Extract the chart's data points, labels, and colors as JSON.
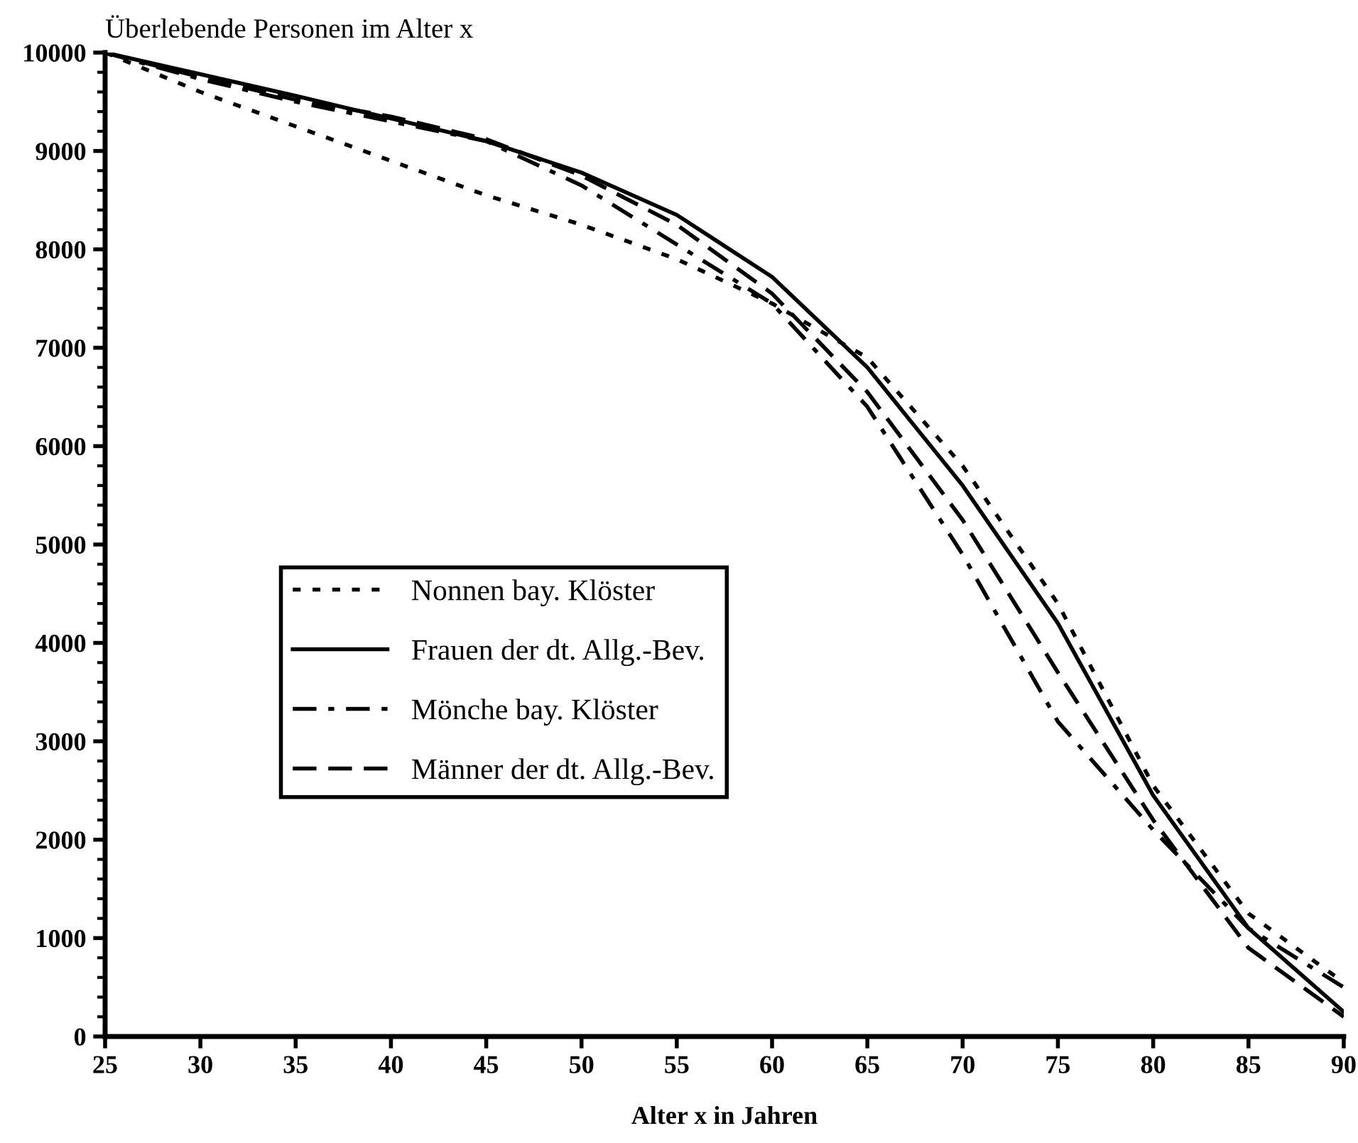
{
  "chart_data": {
    "type": "line",
    "ylabel": "Überlebende Personen im Alter x",
    "xlabel": "Alter x in Jahren",
    "x": [
      25,
      30,
      35,
      40,
      45,
      50,
      55,
      60,
      65,
      70,
      75,
      80,
      85,
      90
    ],
    "xlim": [
      25,
      90
    ],
    "xticks": [
      25,
      30,
      35,
      40,
      45,
      50,
      55,
      60,
      65,
      70,
      75,
      80,
      85,
      90
    ],
    "ylim": [
      0,
      10000
    ],
    "yticks": [
      0,
      1000,
      2000,
      3000,
      4000,
      5000,
      6000,
      7000,
      8000,
      9000,
      10000
    ],
    "grid": false,
    "legend": "left",
    "marker": "none",
    "series": [
      {
        "name": "Nonnen bay. Klöster",
        "color": "#000000",
        "line_style": "dotted",
        "values": [
          10000,
          9600,
          9250,
          8900,
          8550,
          8250,
          7900,
          7450,
          6900,
          5800,
          4400,
          2550,
          1250,
          550
        ]
      },
      {
        "name": "Frauen der dt. Allg.-Bev.",
        "color": "#000000",
        "line_style": "solid",
        "values": [
          10000,
          9780,
          9560,
          9330,
          9100,
          8780,
          8350,
          7720,
          6800,
          5600,
          4200,
          2450,
          1100,
          250
        ]
      },
      {
        "name": "Mönche bay. Klöster",
        "color": "#000000",
        "line_style": "dashdot",
        "values": [
          10000,
          9730,
          9500,
          9300,
          9100,
          8650,
          8050,
          7450,
          6400,
          4900,
          3200,
          2100,
          1100,
          500
        ]
      },
      {
        "name": "Männer der dt. Allg.-Bev.",
        "color": "#000000",
        "line_style": "dashed",
        "values": [
          10000,
          9750,
          9520,
          9350,
          9120,
          8750,
          8250,
          7550,
          6550,
          5250,
          3700,
          2200,
          900,
          200
        ]
      }
    ]
  }
}
